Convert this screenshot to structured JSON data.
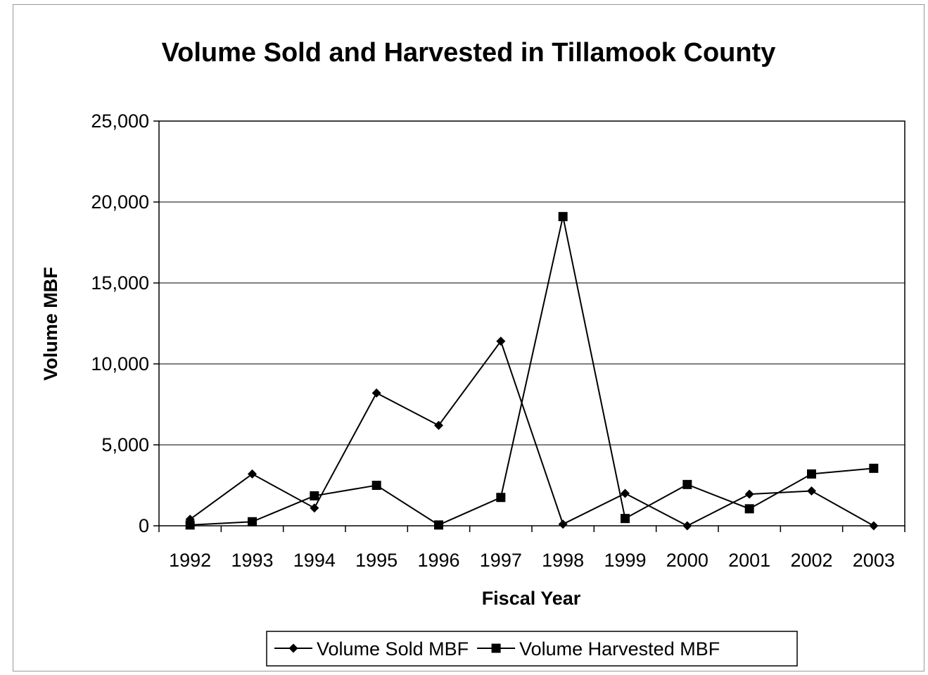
{
  "chart_data": {
    "type": "line",
    "title": "Volume Sold and Harvested in Tillamook County",
    "xlabel": "Fiscal Year",
    "ylabel": "Volume MBF",
    "categories": [
      "1992",
      "1993",
      "1994",
      "1995",
      "1996",
      "1997",
      "1998",
      "1999",
      "2000",
      "2001",
      "2002",
      "2003"
    ],
    "ylim": [
      0,
      25000
    ],
    "yticks": [
      0,
      5000,
      10000,
      15000,
      20000,
      25000
    ],
    "ytick_labels": [
      "0",
      "5,000",
      "10,000",
      "15,000",
      "20,000",
      "25,000"
    ],
    "grid": "horizontal",
    "legend_position": "bottom",
    "series": [
      {
        "name": "Volume Sold MBF",
        "marker": "diamond",
        "color": "#000000",
        "values": [
          400,
          3200,
          1100,
          8200,
          6200,
          11400,
          100,
          2000,
          0,
          1950,
          2150,
          0
        ]
      },
      {
        "name": "Volume Harvested MBF",
        "marker": "square",
        "color": "#000000",
        "values": [
          50,
          250,
          1850,
          2500,
          50,
          1750,
          19100,
          450,
          2550,
          1050,
          3200,
          3550
        ]
      }
    ]
  }
}
